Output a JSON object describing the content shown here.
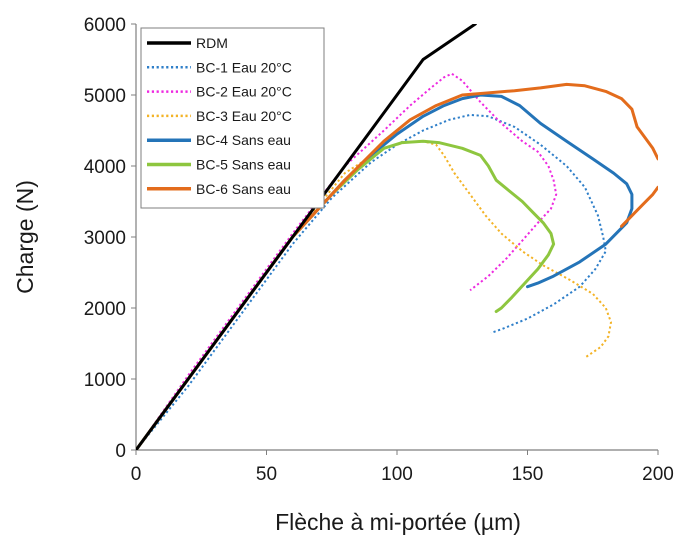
{
  "chart_data": {
    "type": "line",
    "title": "",
    "xlabel": "Flèche à mi-portée (µm)",
    "ylabel": "Charge (N)",
    "xlim": [
      0,
      200
    ],
    "ylim": [
      0,
      6000
    ],
    "xticks": [
      0,
      50,
      100,
      150,
      200
    ],
    "yticks": [
      0,
      1000,
      2000,
      3000,
      4000,
      5000,
      6000
    ],
    "grid": false,
    "legend_position": "top-left",
    "series": [
      {
        "name": "RDM",
        "color": "#000000",
        "style": "solid",
        "points": [
          [
            0,
            0
          ],
          [
            20,
            1000
          ],
          [
            40,
            2000
          ],
          [
            60,
            3000
          ],
          [
            80,
            4000
          ],
          [
            100,
            5000
          ],
          [
            110,
            5500
          ],
          [
            130,
            6000
          ]
        ]
      },
      {
        "name": "BC-1 Eau 20°C",
        "color": "#2f7fc9",
        "style": "dotted",
        "points": [
          [
            0,
            0
          ],
          [
            20,
            900
          ],
          [
            40,
            1900
          ],
          [
            60,
            2900
          ],
          [
            75,
            3550
          ],
          [
            90,
            4050
          ],
          [
            100,
            4300
          ],
          [
            110,
            4500
          ],
          [
            120,
            4650
          ],
          [
            128,
            4720
          ],
          [
            135,
            4700
          ],
          [
            145,
            4550
          ],
          [
            155,
            4300
          ],
          [
            165,
            4000
          ],
          [
            172,
            3700
          ],
          [
            177,
            3300
          ],
          [
            179,
            3000
          ],
          [
            180,
            2800
          ],
          [
            176,
            2550
          ],
          [
            170,
            2300
          ],
          [
            160,
            2050
          ],
          [
            150,
            1850
          ],
          [
            140,
            1700
          ],
          [
            136,
            1650
          ]
        ]
      },
      {
        "name": "BC-2 Eau 20°C",
        "color": "#ee2ae0",
        "style": "dotted",
        "points": [
          [
            0,
            0
          ],
          [
            20,
            1050
          ],
          [
            40,
            2050
          ],
          [
            60,
            3050
          ],
          [
            80,
            4000
          ],
          [
            95,
            4500
          ],
          [
            105,
            4850
          ],
          [
            113,
            5100
          ],
          [
            118,
            5250
          ],
          [
            121,
            5300
          ],
          [
            125,
            5200
          ],
          [
            132,
            4900
          ],
          [
            140,
            4600
          ],
          [
            148,
            4350
          ],
          [
            154,
            4200
          ],
          [
            158,
            4000
          ],
          [
            160,
            3800
          ],
          [
            161,
            3600
          ],
          [
            159,
            3400
          ],
          [
            154,
            3200
          ],
          [
            148,
            2950
          ],
          [
            142,
            2700
          ],
          [
            135,
            2450
          ],
          [
            128,
            2250
          ]
        ]
      },
      {
        "name": "BC-3 Eau 20°C",
        "color": "#f3b326",
        "style": "dotted",
        "points": [
          [
            0,
            0
          ],
          [
            20,
            1000
          ],
          [
            40,
            2000
          ],
          [
            60,
            3000
          ],
          [
            80,
            3900
          ],
          [
            95,
            4250
          ],
          [
            103,
            4330
          ],
          [
            110,
            4350
          ],
          [
            115,
            4300
          ],
          [
            118,
            4150
          ],
          [
            122,
            3900
          ],
          [
            128,
            3600
          ],
          [
            134,
            3300
          ],
          [
            140,
            3050
          ],
          [
            148,
            2800
          ],
          [
            156,
            2600
          ],
          [
            166,
            2400
          ],
          [
            175,
            2200
          ],
          [
            180,
            2000
          ],
          [
            182,
            1800
          ],
          [
            181,
            1600
          ],
          [
            178,
            1450
          ],
          [
            172,
            1300
          ]
        ]
      },
      {
        "name": "BC-4 Sans eau",
        "color": "#2474b8",
        "style": "solid",
        "points": [
          [
            0,
            0
          ],
          [
            20,
            1000
          ],
          [
            40,
            2000
          ],
          [
            60,
            3000
          ],
          [
            80,
            3800
          ],
          [
            90,
            4150
          ],
          [
            100,
            4450
          ],
          [
            110,
            4700
          ],
          [
            118,
            4850
          ],
          [
            125,
            4950
          ],
          [
            132,
            5000
          ],
          [
            140,
            4980
          ],
          [
            147,
            4850
          ],
          [
            155,
            4600
          ],
          [
            165,
            4350
          ],
          [
            175,
            4100
          ],
          [
            183,
            3900
          ],
          [
            188,
            3750
          ],
          [
            190,
            3600
          ],
          [
            190,
            3400
          ],
          [
            188,
            3200
          ],
          [
            180,
            2900
          ],
          [
            170,
            2650
          ],
          [
            160,
            2450
          ],
          [
            154,
            2350
          ],
          [
            150,
            2300
          ]
        ]
      },
      {
        "name": "BC-5 Sans eau",
        "color": "#8ec63f",
        "style": "solid",
        "points": [
          [
            0,
            0
          ],
          [
            20,
            1000
          ],
          [
            40,
            2000
          ],
          [
            60,
            3000
          ],
          [
            75,
            3600
          ],
          [
            85,
            3950
          ],
          [
            95,
            4250
          ],
          [
            102,
            4330
          ],
          [
            110,
            4350
          ],
          [
            116,
            4330
          ],
          [
            125,
            4250
          ],
          [
            132,
            4150
          ],
          [
            135,
            4000
          ],
          [
            138,
            3800
          ],
          [
            143,
            3650
          ],
          [
            148,
            3500
          ],
          [
            152,
            3350
          ],
          [
            156,
            3200
          ],
          [
            159,
            3050
          ],
          [
            160,
            2900
          ],
          [
            158,
            2750
          ],
          [
            154,
            2550
          ],
          [
            149,
            2350
          ],
          [
            144,
            2150
          ],
          [
            140,
            2000
          ],
          [
            138,
            1950
          ]
        ]
      },
      {
        "name": "BC-6 Sans eau",
        "color": "#e36c1c",
        "style": "solid",
        "points": [
          [
            0,
            0
          ],
          [
            20,
            1000
          ],
          [
            40,
            2000
          ],
          [
            60,
            3000
          ],
          [
            80,
            3800
          ],
          [
            95,
            4350
          ],
          [
            105,
            4650
          ],
          [
            115,
            4850
          ],
          [
            125,
            5000
          ],
          [
            135,
            5030
          ],
          [
            145,
            5060
          ],
          [
            155,
            5100
          ],
          [
            165,
            5150
          ],
          [
            172,
            5130
          ],
          [
            180,
            5050
          ],
          [
            186,
            4950
          ],
          [
            190,
            4800
          ],
          [
            192,
            4550
          ],
          [
            195,
            4400
          ],
          [
            198,
            4250
          ],
          [
            200,
            4100
          ]
        ]
      },
      {
        "name": "",
        "color": "#e36c1c",
        "style": "solid",
        "points": [
          [
            186,
            3150
          ],
          [
            190,
            3300
          ],
          [
            194,
            3450
          ],
          [
            198,
            3600
          ],
          [
            200,
            3700
          ]
        ]
      }
    ]
  }
}
